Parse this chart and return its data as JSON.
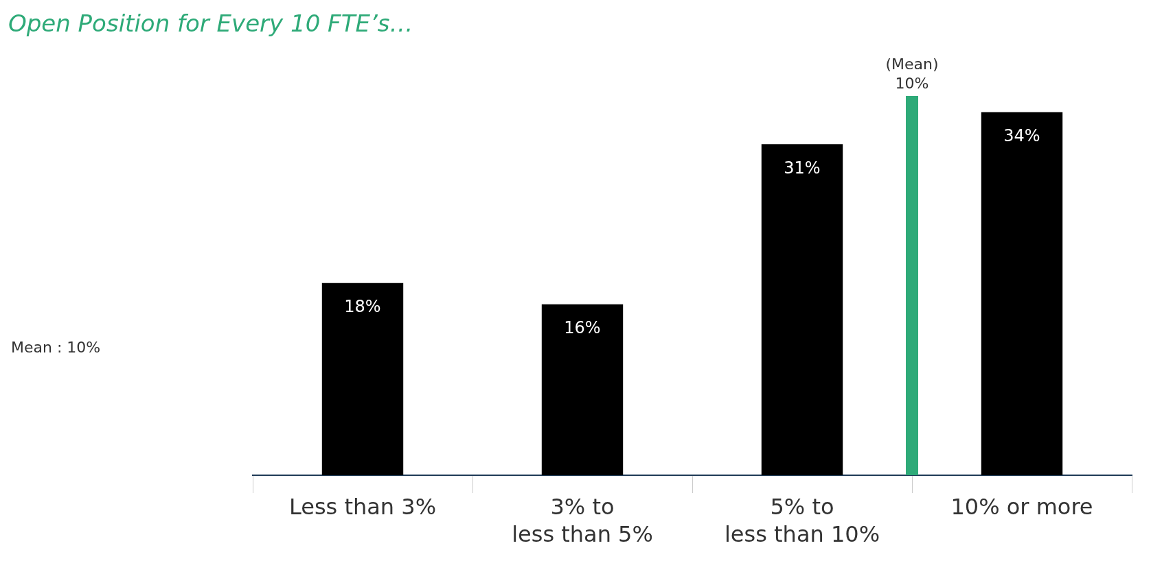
{
  "chart_data": {
    "type": "bar",
    "title": "Open Position for Every 10 FTE’s…",
    "categories": [
      "Less than 3%",
      "3% to\nless than 5%",
      "5% to\nless than 10%",
      "10% or more"
    ],
    "values": [
      18,
      16,
      31,
      34
    ],
    "color": "#000000",
    "value_labels": [
      "18%",
      "16%",
      "31%",
      "34%"
    ],
    "ref_lines": [
      {
        "axis": "x",
        "value": "10% or more",
        "label": "(Mean)\n10%",
        "color": "#2eaa78"
      }
    ],
    "annotations": [
      "Mean : 10%"
    ],
    "grid": false,
    "legend": false
  }
}
